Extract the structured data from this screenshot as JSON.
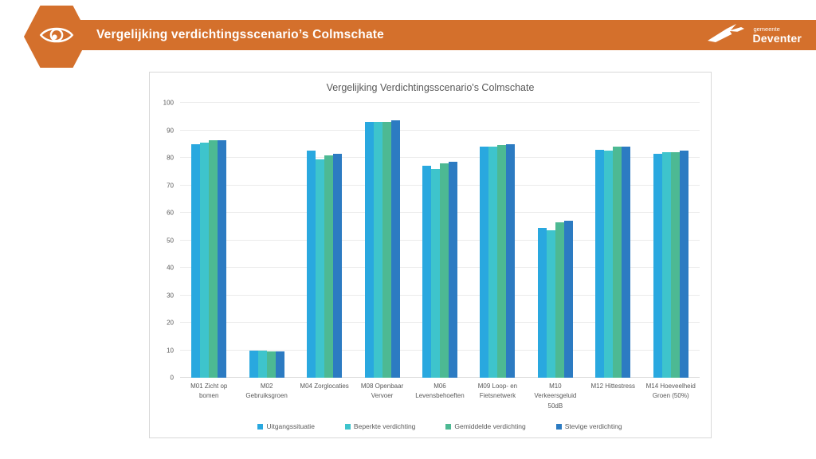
{
  "header": {
    "title": "Vergelijking verdichtingsscenario’s Colmschate",
    "accent_color": "#D4702C",
    "logo": {
      "top": "gemeente",
      "bottom": "Deventer"
    }
  },
  "chart_data": {
    "type": "bar",
    "title": "Vergelijking Verdichtingsscenario's Colmschate",
    "categories": [
      "M01 Zicht op bomen",
      "M02 Gebruiksgroen",
      "M04 Zorglocaties",
      "M08 Openbaar Vervoer",
      "M06 Levensbehoeften",
      "M09 Loop- en Fietsnetwerk",
      "M10 Verkeersgeluid 50dB",
      "M12 Hittestress",
      "M14 Hoeveelheid Groen (50%)"
    ],
    "series": [
      {
        "name": "Uitgangssituatie",
        "color": "#29A8DF",
        "values": [
          85,
          10,
          82.5,
          93,
          77,
          84,
          54.5,
          83,
          81.5
        ]
      },
      {
        "name": "Beperkte verdichting",
        "color": "#3EC4CC",
        "values": [
          85.5,
          10,
          79.5,
          93,
          76,
          84,
          53.5,
          82.5,
          82
        ]
      },
      {
        "name": "Gemiddelde verdichting",
        "color": "#4DB993",
        "values": [
          86.5,
          9.5,
          81,
          93,
          78,
          84.5,
          56.5,
          84,
          82
        ]
      },
      {
        "name": "Stevige verdichting",
        "color": "#2C7BC2",
        "values": [
          86.5,
          9.5,
          81.5,
          93.5,
          78.5,
          85,
          57,
          84,
          82.5
        ]
      }
    ],
    "ylim": [
      0,
      100
    ],
    "ytick_step": 10,
    "grid": true,
    "legend_position": "bottom"
  }
}
